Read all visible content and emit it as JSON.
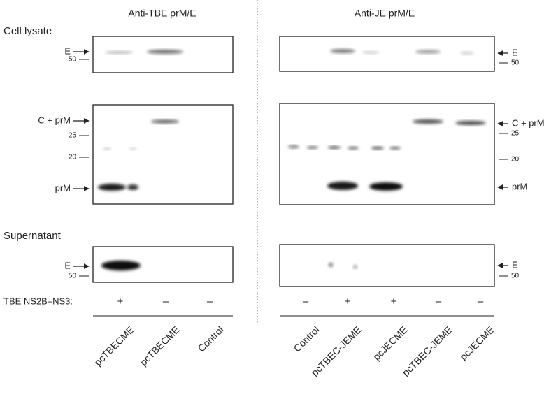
{
  "left": {
    "title": "Anti-TBE prM/E",
    "blots": [
      {
        "labels": [
          "E"
        ],
        "markers": [
          "50"
        ]
      },
      {
        "labels": [
          "C + prM",
          "prM"
        ],
        "markers": [
          "25",
          "20"
        ]
      },
      {
        "labels": [
          "E"
        ],
        "markers": [
          "50"
        ]
      }
    ],
    "ns3": [
      "+",
      "–",
      "–"
    ],
    "lanes": [
      "pcTBECME",
      "pcTBECME",
      "Control"
    ]
  },
  "right": {
    "title": "Anti-JE prM/E",
    "blots": [
      {
        "labels": [
          "E"
        ],
        "markers": [
          "50"
        ]
      },
      {
        "labels": [
          "C + prM",
          "prM"
        ],
        "markers": [
          "25",
          "20"
        ]
      },
      {
        "labels": [
          "E"
        ],
        "markers": [
          "50"
        ]
      }
    ],
    "ns3": [
      "–",
      "+",
      "+",
      "–",
      "–"
    ],
    "lanes": [
      "Control",
      "pcTBEC-JEME",
      "pcJECME",
      "pcTBEC-JEME",
      "pcJECME"
    ]
  },
  "sections": {
    "cell_lysate": "Cell lysate",
    "supernatant": "Supernatant"
  },
  "ns3_label": "TBE NS2B–NS3:"
}
